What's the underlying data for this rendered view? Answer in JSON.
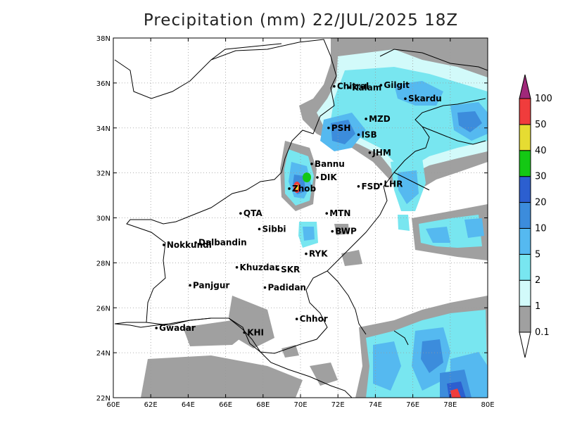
{
  "title": "Precipitation (mm) 22/JUL/2025 18Z",
  "map": {
    "lon_range": [
      60,
      80
    ],
    "lat_range": [
      22,
      38
    ],
    "lon_ticks": [
      "60E",
      "62E",
      "64E",
      "66E",
      "68E",
      "70E",
      "72E",
      "74E",
      "76E",
      "78E",
      "80E"
    ],
    "lat_ticks": [
      "22N",
      "24N",
      "26N",
      "28N",
      "30N",
      "32N",
      "34N",
      "36N",
      "38N"
    ],
    "grid": "dotted"
  },
  "cities": [
    {
      "name": "Chitral",
      "lon": 71.8,
      "lat": 35.85
    },
    {
      "name": "Gilgit",
      "lon": 74.3,
      "lat": 35.9
    },
    {
      "name": "Kalam",
      "lon": 72.6,
      "lat": 35.8
    },
    {
      "name": "Skardu",
      "lon": 75.6,
      "lat": 35.3
    },
    {
      "name": "MZD",
      "lon": 73.5,
      "lat": 34.4
    },
    {
      "name": "PSH",
      "lon": 71.5,
      "lat": 34.0
    },
    {
      "name": "ISB",
      "lon": 73.1,
      "lat": 33.7
    },
    {
      "name": "JHM",
      "lon": 73.7,
      "lat": 32.9
    },
    {
      "name": "Bannu",
      "lon": 70.6,
      "lat": 32.4
    },
    {
      "name": "DIK",
      "lon": 70.9,
      "lat": 31.8
    },
    {
      "name": "FSD",
      "lon": 73.1,
      "lat": 31.4
    },
    {
      "name": "LHR",
      "lon": 74.3,
      "lat": 31.5
    },
    {
      "name": "Zhob",
      "lon": 69.4,
      "lat": 31.3
    },
    {
      "name": "QTA",
      "lon": 66.8,
      "lat": 30.2
    },
    {
      "name": "MTN",
      "lon": 71.4,
      "lat": 30.2
    },
    {
      "name": "Sibbi",
      "lon": 67.8,
      "lat": 29.5
    },
    {
      "name": "BWP",
      "lon": 71.7,
      "lat": 29.4
    },
    {
      "name": "Dalbandin",
      "lon": 64.4,
      "lat": 28.9
    },
    {
      "name": "Nokkundi",
      "lon": 62.7,
      "lat": 28.8
    },
    {
      "name": "RYK",
      "lon": 70.3,
      "lat": 28.4
    },
    {
      "name": "Khuzdar",
      "lon": 66.6,
      "lat": 27.8
    },
    {
      "name": "SKR",
      "lon": 68.8,
      "lat": 27.7
    },
    {
      "name": "Padidan",
      "lon": 68.1,
      "lat": 26.9
    },
    {
      "name": "Panjgur",
      "lon": 64.1,
      "lat": 27.0
    },
    {
      "name": "Chhor",
      "lon": 69.8,
      "lat": 25.5
    },
    {
      "name": "KHI",
      "lon": 67.0,
      "lat": 24.9
    },
    {
      "name": "Gwadar",
      "lon": 62.3,
      "lat": 25.1
    }
  ],
  "legend": {
    "levels": [
      "0.1",
      "1",
      "2",
      "5",
      "10",
      "20",
      "30",
      "40",
      "50",
      "100"
    ],
    "colors": [
      "#a0a0a0",
      "#d2fafa",
      "#78e6f0",
      "#55b9f0",
      "#3c8cdc",
      "#2c5fd0",
      "#14c814",
      "#e6dc32",
      "#f03c3c",
      "#a0287a"
    ]
  }
}
